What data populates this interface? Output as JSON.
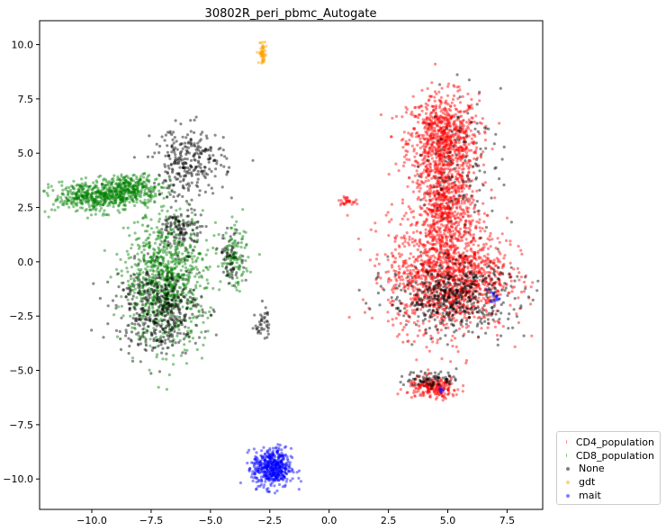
{
  "chart_data": {
    "type": "scatter",
    "title": "30802R_peri_pbmc_Autogate",
    "xlabel": "",
    "ylabel": "",
    "xlim": [
      -12.2,
      9.0
    ],
    "ylim": [
      -11.4,
      11.1
    ],
    "x_ticks": [
      -10.0,
      -7.5,
      -5.0,
      -2.5,
      0.0,
      2.5,
      5.0,
      7.5
    ],
    "y_ticks": [
      -10.0,
      -7.5,
      -5.0,
      -2.5,
      0.0,
      2.5,
      5.0,
      7.5,
      10.0
    ],
    "x_tick_labels": [
      "−10.0",
      "−7.5",
      "−5.0",
      "−2.5",
      "0.0",
      "2.5",
      "5.0",
      "7.5"
    ],
    "y_tick_labels": [
      "−10.0",
      "−7.5",
      "−5.0",
      "−2.5",
      "0.0",
      "2.5",
      "5.0",
      "7.5",
      "10.0"
    ],
    "grid": false,
    "legend_position": "outside-bottom-right",
    "series": [
      {
        "name": "CD4_population",
        "color": "#ff0000",
        "clusters": [
          {
            "cx": 4.8,
            "cy": 5.5,
            "sx": 0.75,
            "sy": 1.1,
            "n": 900
          },
          {
            "cx": 4.9,
            "cy": 2.5,
            "sx": 0.6,
            "sy": 0.9,
            "n": 500
          },
          {
            "cx": 5.0,
            "cy": -0.6,
            "sx": 1.25,
            "sy": 1.3,
            "n": 1400
          },
          {
            "cx": 4.4,
            "cy": -5.8,
            "sx": 0.55,
            "sy": 0.25,
            "n": 220
          },
          {
            "cx": 0.7,
            "cy": 2.8,
            "sx": 0.15,
            "sy": 0.08,
            "n": 30
          }
        ]
      },
      {
        "name": "CD8_population",
        "color": "#008000",
        "clusters": [
          {
            "cx": -9.8,
            "cy": 3.0,
            "sx": 0.9,
            "sy": 0.35,
            "n": 500
          },
          {
            "cx": -8.2,
            "cy": 3.4,
            "sx": 0.6,
            "sy": 0.3,
            "n": 250
          },
          {
            "cx": -6.9,
            "cy": -0.8,
            "sx": 0.85,
            "sy": 1.5,
            "n": 900
          },
          {
            "cx": -4.0,
            "cy": 0.1,
            "sx": 0.3,
            "sy": 0.7,
            "n": 120
          }
        ]
      },
      {
        "name": "None",
        "color": "#000000",
        "clusters": [
          {
            "cx": -5.9,
            "cy": 4.6,
            "sx": 0.75,
            "sy": 0.8,
            "n": 280
          },
          {
            "cx": -7.2,
            "cy": -2.2,
            "sx": 0.9,
            "sy": 1.0,
            "n": 450
          },
          {
            "cx": -6.2,
            "cy": 1.5,
            "sx": 0.4,
            "sy": 0.5,
            "n": 120
          },
          {
            "cx": 5.2,
            "cy": -1.6,
            "sx": 1.3,
            "sy": 0.8,
            "n": 500
          },
          {
            "cx": 5.6,
            "cy": 4.5,
            "sx": 0.8,
            "sy": 1.6,
            "n": 120
          },
          {
            "cx": 4.3,
            "cy": -5.4,
            "sx": 0.55,
            "sy": 0.2,
            "n": 80
          },
          {
            "cx": -2.8,
            "cy": -2.8,
            "sx": 0.15,
            "sy": 0.4,
            "n": 40
          },
          {
            "cx": -4.1,
            "cy": 0.2,
            "sx": 0.25,
            "sy": 0.6,
            "n": 60
          }
        ]
      },
      {
        "name": "gdt",
        "color": "#ffa500",
        "clusters": [
          {
            "cx": -2.8,
            "cy": 9.6,
            "sx": 0.08,
            "sy": 0.25,
            "n": 60
          }
        ]
      },
      {
        "name": "mait",
        "color": "#0000ff",
        "clusters": [
          {
            "cx": -2.4,
            "cy": -9.5,
            "sx": 0.4,
            "sy": 0.45,
            "n": 500
          },
          {
            "cx": 7.0,
            "cy": -1.6,
            "sx": 0.1,
            "sy": 0.15,
            "n": 15
          },
          {
            "cx": 4.7,
            "cy": -5.9,
            "sx": 0.08,
            "sy": 0.08,
            "n": 8
          }
        ]
      }
    ]
  }
}
